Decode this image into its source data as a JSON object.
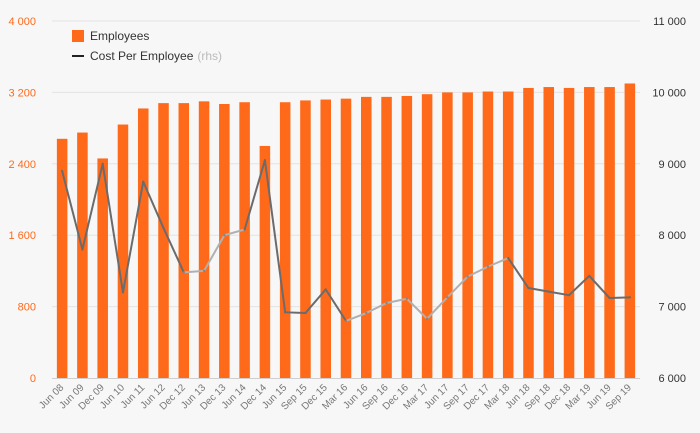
{
  "colors": {
    "bar": "#ff6a1a",
    "left_axis_text": "#ff6a1a",
    "line_dark": "#6b6b6b",
    "line_light": "#b0b0b0",
    "grid": "#e3e3e3",
    "background": "#f7f7f7"
  },
  "legend": {
    "employees": "Employees",
    "cost": "Cost Per Employee",
    "cost_suffix": "(rhs)"
  },
  "chart_data": {
    "type": "bar",
    "categories": [
      "Jun 08",
      "Jun 09",
      "Dec 09",
      "Jun 10",
      "Jun 11",
      "Jun 12",
      "Dec 12",
      "Jun 13",
      "Dec 13",
      "Jun 14",
      "Dec 14",
      "Jun 15",
      "Sep 15",
      "Dec 15",
      "Mar 16",
      "Jun 16",
      "Sep 16",
      "Dec 16",
      "Mar 17",
      "Jun 17",
      "Sep 17",
      "Dec 17",
      "Mar 18",
      "Jun 18",
      "Sep 18",
      "Dec 18",
      "Mar 19",
      "Jun 19",
      "Sep 19"
    ],
    "series": [
      {
        "name": "Employees",
        "type": "bar",
        "axis": "left",
        "values": [
          2680,
          2750,
          2460,
          2840,
          3020,
          3080,
          3080,
          3100,
          3070,
          3090,
          2600,
          3090,
          3110,
          3120,
          3130,
          3150,
          3150,
          3160,
          3180,
          3200,
          3200,
          3210,
          3210,
          3250,
          3260,
          3250,
          3260,
          3260,
          3300
        ]
      },
      {
        "name": "Cost Per Employee",
        "type": "line",
        "axis": "right",
        "values": [
          8900,
          7800,
          9000,
          7200,
          8750,
          8100,
          7480,
          7500,
          8000,
          8080,
          9050,
          6920,
          6910,
          7240,
          6800,
          6910,
          7050,
          7110,
          6830,
          7130,
          7420,
          7560,
          7680,
          7260,
          7210,
          7160,
          7430,
          7120,
          7130
        ]
      }
    ],
    "y_left": {
      "ylim": [
        0,
        4000
      ],
      "ticks": [
        0,
        800,
        1600,
        2400,
        3200,
        4000
      ],
      "tick_labels": [
        "0",
        "800",
        "1 600",
        "2 400",
        "3 200",
        "4 000"
      ]
    },
    "y_right": {
      "ylim": [
        6000,
        11000
      ],
      "ticks": [
        6000,
        7000,
        8000,
        9000,
        10000,
        11000
      ],
      "tick_labels": [
        "6 000",
        "7 000",
        "8 000",
        "9 000",
        "10 000",
        "11 000"
      ]
    },
    "grid": true,
    "legend_position": "top-left"
  }
}
